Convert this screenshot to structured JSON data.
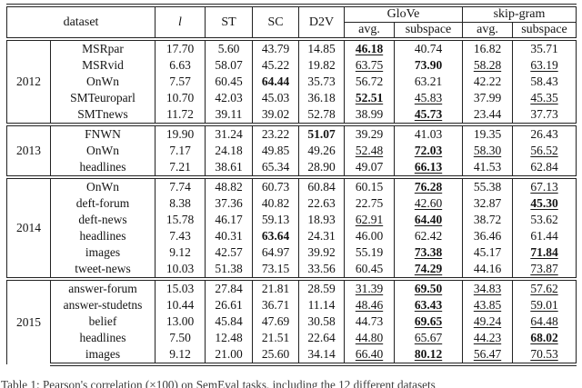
{
  "table": {
    "columns": {
      "dataset": "dataset",
      "l": "l",
      "st": "ST",
      "sc": "SC",
      "d2v": "D2V",
      "glove": "GloVe",
      "skipgram": "skip-gram",
      "avg": "avg.",
      "subspace": "subspace"
    },
    "groups": [
      {
        "year": "2012",
        "rows": [
          {
            "name": "MSRpar",
            "values": [
              "17.70",
              "5.60",
              "43.79",
              "14.85",
              "46.18",
              "40.74",
              "16.82",
              "35.71"
            ],
            "styles": [
              null,
              null,
              null,
              null,
              "bu",
              null,
              null,
              null
            ]
          },
          {
            "name": "MSRvid",
            "values": [
              "6.63",
              "58.07",
              "45.22",
              "19.82",
              "63.75",
              "73.90",
              "58.28",
              "63.19"
            ],
            "styles": [
              null,
              null,
              null,
              null,
              "u",
              "b",
              "u",
              "u"
            ]
          },
          {
            "name": "OnWn",
            "values": [
              "7.57",
              "60.45",
              "64.44",
              "35.73",
              "56.72",
              "63.21",
              "42.22",
              "58.43"
            ],
            "styles": [
              null,
              null,
              "b",
              null,
              null,
              null,
              null,
              null
            ]
          },
          {
            "name": "SMTeuroparl",
            "values": [
              "10.70",
              "42.03",
              "45.03",
              "36.18",
              "52.51",
              "45.83",
              "37.99",
              "45.35"
            ],
            "styles": [
              null,
              null,
              null,
              null,
              "bu",
              "u",
              null,
              "u"
            ]
          },
          {
            "name": "SMTnews",
            "values": [
              "11.72",
              "39.11",
              "39.02",
              "52.78",
              "38.99",
              "45.73",
              "23.44",
              "37.73"
            ],
            "styles": [
              null,
              null,
              null,
              null,
              null,
              "bu",
              null,
              null
            ]
          }
        ]
      },
      {
        "year": "2013",
        "rows": [
          {
            "name": "FNWN",
            "values": [
              "19.90",
              "31.24",
              "23.22",
              "51.07",
              "39.29",
              "41.03",
              "19.35",
              "26.43"
            ],
            "styles": [
              null,
              null,
              null,
              "b",
              null,
              null,
              null,
              null
            ]
          },
          {
            "name": "OnWn",
            "values": [
              "7.17",
              "24.18",
              "49.85",
              "49.26",
              "52.48",
              "72.03",
              "58.30",
              "56.52"
            ],
            "styles": [
              null,
              null,
              null,
              null,
              "u",
              "bu",
              "u",
              "u"
            ]
          },
          {
            "name": "headlines",
            "values": [
              "7.21",
              "38.61",
              "65.34",
              "28.90",
              "49.07",
              "66.13",
              "41.53",
              "62.84"
            ],
            "styles": [
              null,
              null,
              null,
              null,
              null,
              "bu",
              null,
              null
            ]
          }
        ]
      },
      {
        "year": "2014",
        "rows": [
          {
            "name": "OnWn",
            "values": [
              "7.74",
              "48.82",
              "60.73",
              "60.84",
              "60.15",
              "76.28",
              "55.38",
              "67.13"
            ],
            "styles": [
              null,
              null,
              null,
              null,
              null,
              "bu",
              null,
              "u"
            ]
          },
          {
            "name": "deft-forum",
            "values": [
              "8.38",
              "37.36",
              "40.82",
              "22.63",
              "22.75",
              "42.60",
              "32.87",
              "45.30"
            ],
            "styles": [
              null,
              null,
              null,
              null,
              null,
              "u",
              null,
              "bu"
            ]
          },
          {
            "name": "deft-news",
            "values": [
              "15.78",
              "46.17",
              "59.13",
              "18.93",
              "62.91",
              "64.40",
              "38.72",
              "53.62"
            ],
            "styles": [
              null,
              null,
              null,
              null,
              "u",
              "bu",
              null,
              null
            ]
          },
          {
            "name": "headlines",
            "values": [
              "7.43",
              "40.31",
              "63.64",
              "24.31",
              "46.00",
              "62.42",
              "36.46",
              "61.44"
            ],
            "styles": [
              null,
              null,
              "b",
              null,
              null,
              null,
              null,
              null
            ]
          },
          {
            "name": "images",
            "values": [
              "9.12",
              "42.57",
              "64.97",
              "39.92",
              "55.19",
              "73.38",
              "45.17",
              "71.84"
            ],
            "styles": [
              null,
              null,
              null,
              null,
              null,
              "bu",
              null,
              "bu"
            ]
          },
          {
            "name": "tweet-news",
            "values": [
              "10.03",
              "51.38",
              "73.15",
              "33.56",
              "60.45",
              "74.29",
              "44.16",
              "73.87"
            ],
            "styles": [
              null,
              null,
              null,
              null,
              null,
              "bu",
              null,
              "u"
            ]
          }
        ]
      },
      {
        "year": "2015",
        "rows": [
          {
            "name": "answer-forum",
            "values": [
              "15.03",
              "27.84",
              "21.81",
              "28.59",
              "31.39",
              "69.50",
              "34.83",
              "57.62"
            ],
            "styles": [
              null,
              null,
              null,
              null,
              "u",
              "bu",
              "u",
              "u"
            ]
          },
          {
            "name": "answer-studetns",
            "values": [
              "10.44",
              "26.61",
              "36.71",
              "11.14",
              "48.46",
              "63.43",
              "43.85",
              "59.01"
            ],
            "styles": [
              null,
              null,
              null,
              null,
              "u",
              "bu",
              "u",
              "u"
            ]
          },
          {
            "name": "belief",
            "values": [
              "13.00",
              "45.84",
              "47.69",
              "30.58",
              "44.73",
              "69.65",
              "49.24",
              "64.48"
            ],
            "styles": [
              null,
              null,
              null,
              null,
              null,
              "bu",
              "u",
              "u"
            ]
          },
          {
            "name": "headlines",
            "values": [
              "7.50",
              "12.48",
              "21.51",
              "22.64",
              "44.80",
              "65.67",
              "44.23",
              "68.02"
            ],
            "styles": [
              null,
              null,
              null,
              null,
              "u",
              "u",
              "u",
              "bu"
            ]
          },
          {
            "name": "images",
            "values": [
              "9.12",
              "21.00",
              "25.60",
              "34.14",
              "66.40",
              "80.12",
              "56.47",
              "70.53"
            ],
            "styles": [
              null,
              null,
              null,
              null,
              "u",
              "bu",
              "u",
              "u"
            ]
          }
        ]
      }
    ]
  },
  "caption": {
    "text": "Table 1: Pearson's correlation (×100) on SemEval tasks, including the 12 different datasets"
  }
}
